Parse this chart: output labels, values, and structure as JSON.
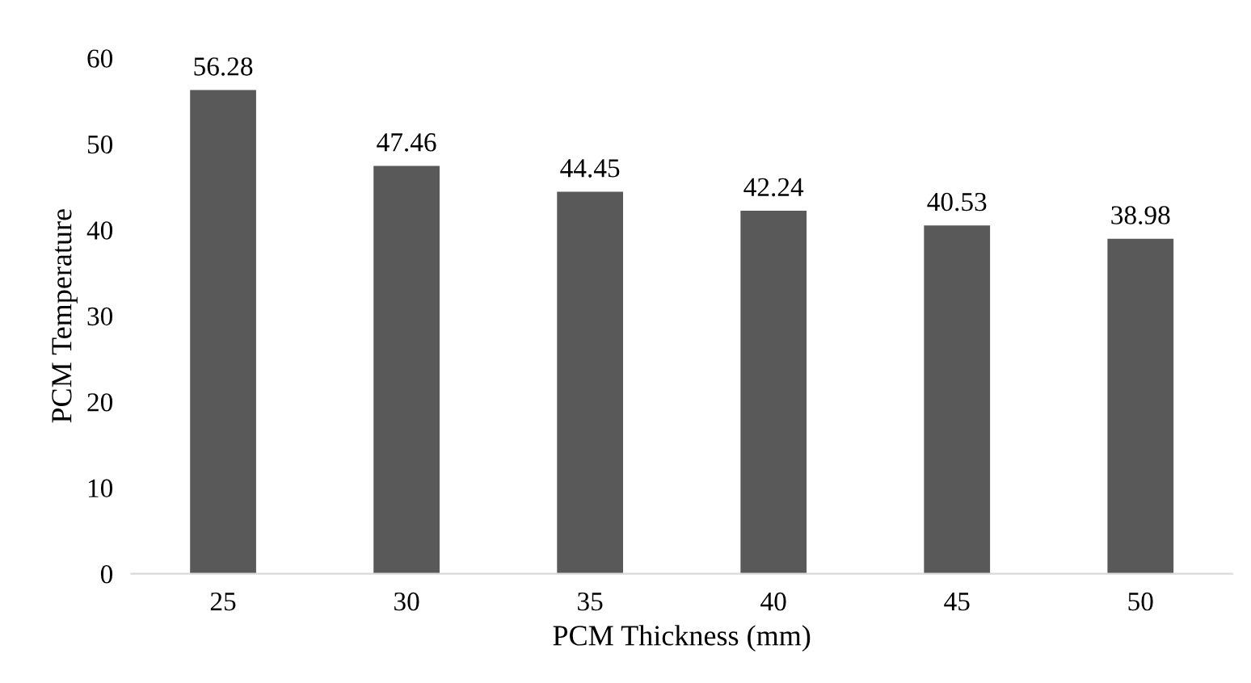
{
  "chart_data": {
    "type": "bar",
    "xlabel": "PCM Thickness (mm)",
    "ylabel": "PCM Temperature",
    "categories": [
      "25",
      "30",
      "35",
      "40",
      "45",
      "50"
    ],
    "values": [
      56.28,
      47.46,
      44.45,
      42.24,
      40.53,
      38.98
    ],
    "color": "#595959",
    "ylim": [
      0,
      60
    ],
    "yticks": [
      0,
      10,
      20,
      30,
      40,
      50,
      60
    ],
    "data_labels": true,
    "grid": false
  }
}
